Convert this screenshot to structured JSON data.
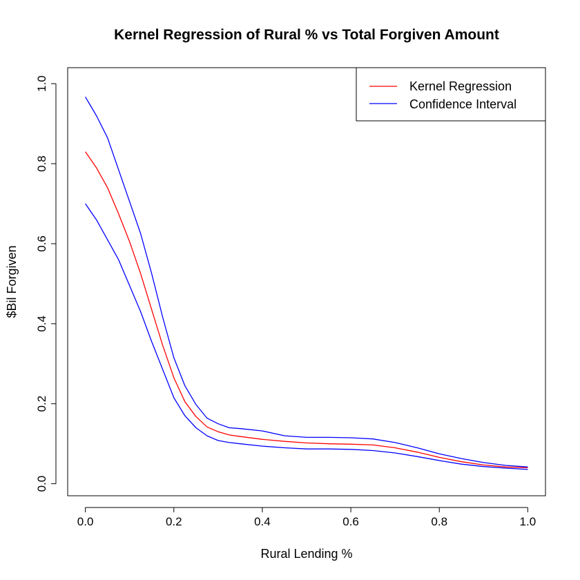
{
  "chart_data": {
    "type": "line",
    "title": "Kernel Regression of Rural % vs Total Forgiven Amount",
    "xlabel": "Rural Lending %",
    "ylabel": "$Bil Forgiven",
    "xlim": [
      -0.04,
      1.04
    ],
    "ylim": [
      -0.03,
      1.04
    ],
    "x_ticks": [
      0.0,
      0.2,
      0.4,
      0.6,
      0.8,
      1.0
    ],
    "x_tick_labels": [
      "0.0",
      "0.2",
      "0.4",
      "0.6",
      "0.8",
      "1.0"
    ],
    "y_ticks": [
      0.0,
      0.2,
      0.4,
      0.6,
      0.8,
      1.0
    ],
    "y_tick_labels": [
      "0.0",
      "0.2",
      "0.4",
      "0.6",
      "0.8",
      "1.0"
    ],
    "grid": false,
    "legend_position": "top-right",
    "legend": [
      {
        "label": "Kernel Regression",
        "color": "#ff0000"
      },
      {
        "label": "Confidence Interval",
        "color": "#0000ff"
      }
    ],
    "series": [
      {
        "name": "Kernel Regression",
        "color": "#ff0000",
        "x": [
          0.0,
          0.025,
          0.05,
          0.075,
          0.1,
          0.125,
          0.15,
          0.175,
          0.2,
          0.225,
          0.25,
          0.275,
          0.3,
          0.325,
          0.35,
          0.4,
          0.45,
          0.5,
          0.55,
          0.6,
          0.65,
          0.7,
          0.75,
          0.8,
          0.85,
          0.9,
          0.95,
          1.0
        ],
        "y": [
          0.83,
          0.79,
          0.74,
          0.675,
          0.605,
          0.525,
          0.435,
          0.345,
          0.265,
          0.205,
          0.168,
          0.142,
          0.13,
          0.122,
          0.118,
          0.111,
          0.106,
          0.102,
          0.1,
          0.099,
          0.097,
          0.09,
          0.079,
          0.066,
          0.055,
          0.047,
          0.042,
          0.04
        ]
      },
      {
        "name": "Confidence Interval",
        "color": "#0000ff",
        "x": [
          0.0,
          0.025,
          0.05,
          0.075,
          0.1,
          0.125,
          0.15,
          0.175,
          0.2,
          0.225,
          0.25,
          0.275,
          0.3,
          0.325,
          0.35,
          0.4,
          0.45,
          0.5,
          0.55,
          0.6,
          0.65,
          0.7,
          0.75,
          0.8,
          0.85,
          0.9,
          0.95,
          1.0
        ],
        "y": [
          0.967,
          0.92,
          0.865,
          0.785,
          0.705,
          0.625,
          0.525,
          0.415,
          0.315,
          0.245,
          0.198,
          0.164,
          0.15,
          0.14,
          0.138,
          0.132,
          0.12,
          0.116,
          0.116,
          0.115,
          0.112,
          0.103,
          0.09,
          0.075,
          0.063,
          0.053,
          0.046,
          0.042
        ]
      },
      {
        "name": "",
        "color": "#0000ff",
        "x": [
          0.0,
          0.025,
          0.05,
          0.075,
          0.1,
          0.125,
          0.15,
          0.175,
          0.2,
          0.225,
          0.25,
          0.275,
          0.3,
          0.325,
          0.35,
          0.4,
          0.45,
          0.5,
          0.55,
          0.6,
          0.65,
          0.7,
          0.75,
          0.8,
          0.85,
          0.9,
          0.95,
          1.0
        ],
        "y": [
          0.7,
          0.66,
          0.61,
          0.56,
          0.495,
          0.43,
          0.355,
          0.285,
          0.215,
          0.17,
          0.14,
          0.12,
          0.108,
          0.103,
          0.1,
          0.094,
          0.09,
          0.087,
          0.087,
          0.086,
          0.083,
          0.077,
          0.068,
          0.058,
          0.049,
          0.043,
          0.039,
          0.036
        ]
      }
    ]
  }
}
